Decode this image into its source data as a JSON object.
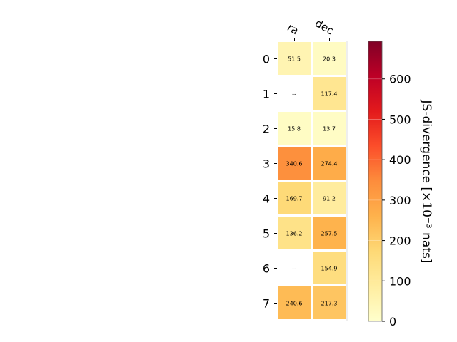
{
  "chart_data": {
    "type": "heatmap",
    "title": "",
    "x_categories": [
      "ra",
      "dec"
    ],
    "y_categories": [
      "0",
      "1",
      "2",
      "3",
      "4",
      "5",
      "6",
      "7"
    ],
    "values": [
      [
        51.5,
        20.3
      ],
      [
        null,
        117.4
      ],
      [
        15.8,
        13.7
      ],
      [
        340.6,
        274.4
      ],
      [
        169.7,
        91.2
      ],
      [
        136.2,
        257.5
      ],
      [
        null,
        154.9
      ],
      [
        240.6,
        217.3
      ]
    ],
    "cell_labels": [
      [
        "51.5",
        "20.3"
      ],
      [
        "--",
        "117.4"
      ],
      [
        "15.8",
        "13.7"
      ],
      [
        "340.6",
        "274.4"
      ],
      [
        "169.7",
        "91.2"
      ],
      [
        "136.2",
        "257.5"
      ],
      [
        "--",
        "154.9"
      ],
      [
        "240.6",
        "217.3"
      ]
    ],
    "colorbar": {
      "label": "JS-divergence [×10⁻³ nats]",
      "range": [
        0,
        693
      ],
      "ticks": [
        0,
        100,
        200,
        300,
        400,
        500,
        600
      ],
      "tick_labels": [
        "0",
        "100",
        "200",
        "300",
        "400",
        "500",
        "600"
      ],
      "colormap": "YlOrRd"
    }
  }
}
